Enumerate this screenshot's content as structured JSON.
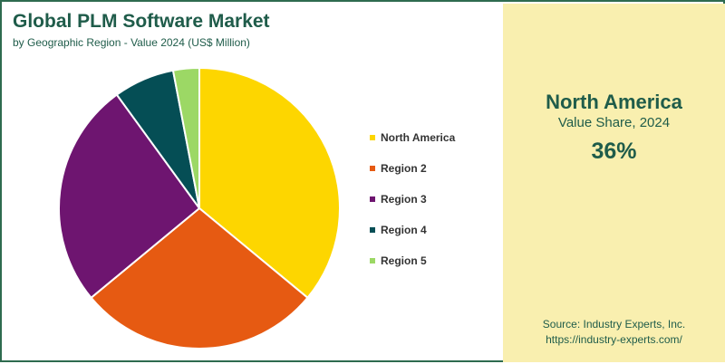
{
  "chart_data": {
    "type": "pie",
    "title": "Global PLM Software Market",
    "subtitle": "by Geographic Region - Value 2024 (US$ Million)",
    "categories": [
      "North America",
      "Region 2",
      "Region 3",
      "Region 4",
      "Region 5"
    ],
    "values": [
      36,
      28,
      26,
      7,
      3
    ],
    "colors": [
      "#fdd600",
      "#e65a12",
      "#6e1570",
      "#054e55",
      "#9cd865"
    ],
    "legend_position": "right"
  },
  "highlight": {
    "region": "North America",
    "label": "Value Share, 2024",
    "value": "36%"
  },
  "source": {
    "line1": "Source: Industry Experts, Inc.",
    "line2": "https://industry-experts.com/"
  }
}
